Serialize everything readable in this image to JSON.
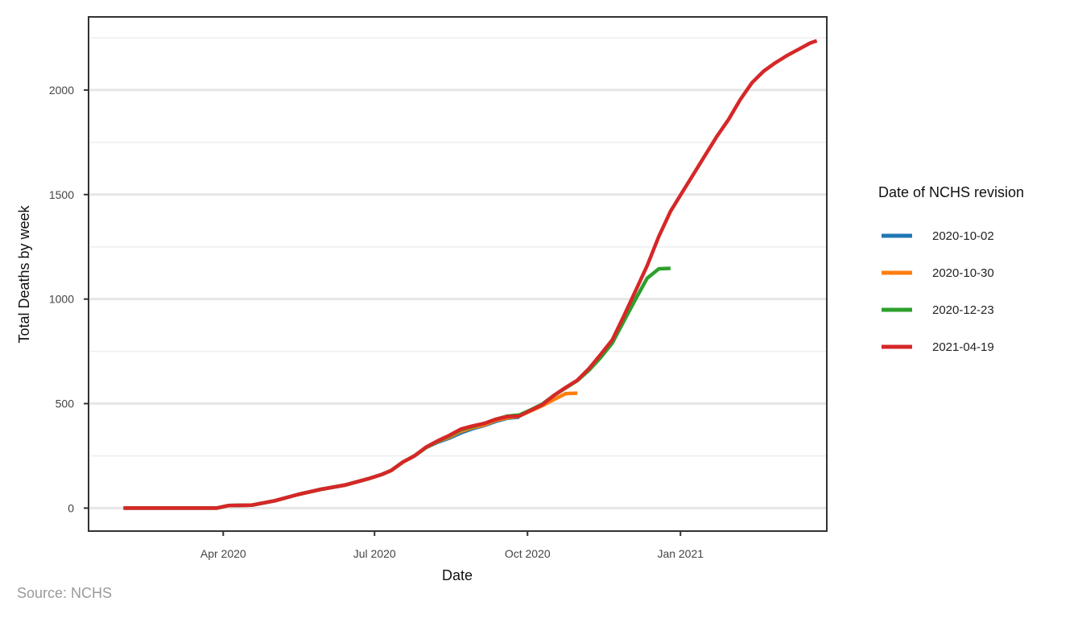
{
  "caption": "Source: NCHS",
  "legend": {
    "title": "Date of NCHS revision"
  },
  "chart_data": {
    "type": "line",
    "title": "",
    "xlabel": "Date",
    "ylabel": "Total Deaths by week",
    "x_ticks": [
      {
        "date": "2020-04-01",
        "label": "Apr 2020"
      },
      {
        "date": "2020-07-01",
        "label": "Jul 2020"
      },
      {
        "date": "2020-10-01",
        "label": "Oct 2020"
      },
      {
        "date": "2021-01-01",
        "label": "Jan 2021"
      }
    ],
    "y_ticks": [
      0,
      500,
      1000,
      1500,
      2000
    ],
    "xlim": [
      "2020-01-11",
      "2021-03-30"
    ],
    "ylim": [
      -110,
      2350
    ],
    "grid": true,
    "legend_position": "right",
    "series": [
      {
        "name": "2020-10-02",
        "color": "#1f77b4",
        "points": [
          [
            "2020-02-01",
            0
          ],
          [
            "2020-02-15",
            0
          ],
          [
            "2020-03-01",
            0
          ],
          [
            "2020-03-15",
            0
          ],
          [
            "2020-03-28",
            0
          ],
          [
            "2020-04-04",
            12
          ],
          [
            "2020-04-18",
            14
          ],
          [
            "2020-05-02",
            35
          ],
          [
            "2020-05-16",
            65
          ],
          [
            "2020-05-30",
            90
          ],
          [
            "2020-06-13",
            110
          ],
          [
            "2020-06-27",
            140
          ],
          [
            "2020-07-05",
            160
          ],
          [
            "2020-07-11",
            180
          ],
          [
            "2020-07-18",
            220
          ],
          [
            "2020-07-25",
            250
          ],
          [
            "2020-08-01",
            290
          ],
          [
            "2020-08-08",
            315
          ],
          [
            "2020-08-15",
            335
          ],
          [
            "2020-08-22",
            360
          ],
          [
            "2020-08-29",
            380
          ],
          [
            "2020-09-05",
            395
          ],
          [
            "2020-09-12",
            415
          ],
          [
            "2020-09-19",
            430
          ],
          [
            "2020-09-26",
            435
          ]
        ]
      },
      {
        "name": "2020-10-30",
        "color": "#ff7f0e",
        "points": [
          [
            "2020-02-01",
            0
          ],
          [
            "2020-02-15",
            0
          ],
          [
            "2020-03-01",
            0
          ],
          [
            "2020-03-15",
            0
          ],
          [
            "2020-03-28",
            0
          ],
          [
            "2020-04-04",
            12
          ],
          [
            "2020-04-18",
            14
          ],
          [
            "2020-05-02",
            35
          ],
          [
            "2020-05-16",
            65
          ],
          [
            "2020-05-30",
            90
          ],
          [
            "2020-06-13",
            110
          ],
          [
            "2020-06-27",
            140
          ],
          [
            "2020-07-05",
            160
          ],
          [
            "2020-07-11",
            180
          ],
          [
            "2020-07-18",
            220
          ],
          [
            "2020-07-25",
            250
          ],
          [
            "2020-08-01",
            290
          ],
          [
            "2020-08-08",
            318
          ],
          [
            "2020-08-15",
            340
          ],
          [
            "2020-08-22",
            368
          ],
          [
            "2020-08-29",
            385
          ],
          [
            "2020-09-05",
            398
          ],
          [
            "2020-09-12",
            420
          ],
          [
            "2020-09-19",
            432
          ],
          [
            "2020-09-26",
            440
          ],
          [
            "2020-10-03",
            465
          ],
          [
            "2020-10-10",
            490
          ],
          [
            "2020-10-17",
            520
          ],
          [
            "2020-10-24",
            548
          ],
          [
            "2020-10-31",
            550
          ]
        ]
      },
      {
        "name": "2020-12-23",
        "color": "#2ca02c",
        "points": [
          [
            "2020-02-01",
            0
          ],
          [
            "2020-02-15",
            0
          ],
          [
            "2020-03-01",
            0
          ],
          [
            "2020-03-15",
            0
          ],
          [
            "2020-03-28",
            0
          ],
          [
            "2020-04-04",
            12
          ],
          [
            "2020-04-18",
            14
          ],
          [
            "2020-05-02",
            35
          ],
          [
            "2020-05-16",
            65
          ],
          [
            "2020-05-30",
            90
          ],
          [
            "2020-06-13",
            110
          ],
          [
            "2020-06-27",
            140
          ],
          [
            "2020-07-05",
            160
          ],
          [
            "2020-07-11",
            180
          ],
          [
            "2020-07-18",
            220
          ],
          [
            "2020-07-25",
            250
          ],
          [
            "2020-08-01",
            290
          ],
          [
            "2020-08-08",
            320
          ],
          [
            "2020-08-15",
            345
          ],
          [
            "2020-08-22",
            375
          ],
          [
            "2020-08-29",
            390
          ],
          [
            "2020-09-05",
            405
          ],
          [
            "2020-09-12",
            425
          ],
          [
            "2020-09-19",
            440
          ],
          [
            "2020-09-26",
            445
          ],
          [
            "2020-10-03",
            470
          ],
          [
            "2020-10-10",
            498
          ],
          [
            "2020-10-17",
            540
          ],
          [
            "2020-10-24",
            575
          ],
          [
            "2020-10-31",
            610
          ],
          [
            "2020-11-07",
            660
          ],
          [
            "2020-11-14",
            720
          ],
          [
            "2020-11-21",
            790
          ],
          [
            "2020-11-28",
            895
          ],
          [
            "2020-12-05",
            1000
          ],
          [
            "2020-12-12",
            1100
          ],
          [
            "2020-12-19",
            1145
          ],
          [
            "2020-12-26",
            1147
          ]
        ]
      },
      {
        "name": "2021-04-19",
        "color": "#d62728",
        "points": [
          [
            "2020-02-01",
            0
          ],
          [
            "2020-02-15",
            0
          ],
          [
            "2020-03-01",
            0
          ],
          [
            "2020-03-15",
            0
          ],
          [
            "2020-03-28",
            0
          ],
          [
            "2020-04-04",
            12
          ],
          [
            "2020-04-18",
            14
          ],
          [
            "2020-05-02",
            35
          ],
          [
            "2020-05-16",
            65
          ],
          [
            "2020-05-30",
            90
          ],
          [
            "2020-06-13",
            110
          ],
          [
            "2020-06-27",
            140
          ],
          [
            "2020-07-05",
            160
          ],
          [
            "2020-07-11",
            180
          ],
          [
            "2020-07-18",
            220
          ],
          [
            "2020-07-25",
            250
          ],
          [
            "2020-08-01",
            292
          ],
          [
            "2020-08-08",
            322
          ],
          [
            "2020-08-15",
            348
          ],
          [
            "2020-08-22",
            378
          ],
          [
            "2020-08-29",
            393
          ],
          [
            "2020-09-05",
            405
          ],
          [
            "2020-09-12",
            425
          ],
          [
            "2020-09-19",
            438
          ],
          [
            "2020-09-26",
            440
          ],
          [
            "2020-10-03",
            468
          ],
          [
            "2020-10-10",
            495
          ],
          [
            "2020-10-17",
            540
          ],
          [
            "2020-10-24",
            577
          ],
          [
            "2020-10-31",
            612
          ],
          [
            "2020-11-07",
            668
          ],
          [
            "2020-11-14",
            735
          ],
          [
            "2020-11-21",
            805
          ],
          [
            "2020-11-28",
            920
          ],
          [
            "2020-12-05",
            1040
          ],
          [
            "2020-12-12",
            1160
          ],
          [
            "2020-12-19",
            1300
          ],
          [
            "2020-12-26",
            1420
          ],
          [
            "2021-01-02",
            1510
          ],
          [
            "2021-01-09",
            1600
          ],
          [
            "2021-01-16",
            1690
          ],
          [
            "2021-01-23",
            1780
          ],
          [
            "2021-01-30",
            1860
          ],
          [
            "2021-02-06",
            1955
          ],
          [
            "2021-02-13",
            2035
          ],
          [
            "2021-02-20",
            2090
          ],
          [
            "2021-02-27",
            2130
          ],
          [
            "2021-03-06",
            2165
          ],
          [
            "2021-03-13",
            2195
          ],
          [
            "2021-03-20",
            2225
          ],
          [
            "2021-03-24",
            2236
          ]
        ]
      }
    ]
  }
}
